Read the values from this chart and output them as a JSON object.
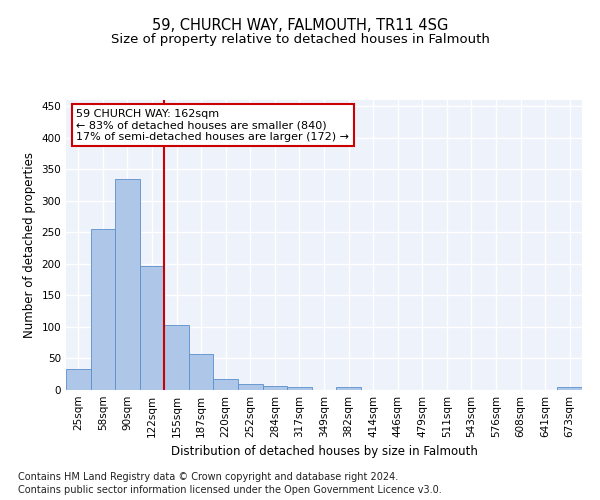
{
  "title": "59, CHURCH WAY, FALMOUTH, TR11 4SG",
  "subtitle": "Size of property relative to detached houses in Falmouth",
  "xlabel": "Distribution of detached houses by size in Falmouth",
  "ylabel": "Number of detached properties",
  "footnote1": "Contains HM Land Registry data © Crown copyright and database right 2024.",
  "footnote2": "Contains public sector information licensed under the Open Government Licence v3.0.",
  "bin_labels": [
    "25sqm",
    "58sqm",
    "90sqm",
    "122sqm",
    "155sqm",
    "187sqm",
    "220sqm",
    "252sqm",
    "284sqm",
    "317sqm",
    "349sqm",
    "382sqm",
    "414sqm",
    "446sqm",
    "479sqm",
    "511sqm",
    "543sqm",
    "576sqm",
    "608sqm",
    "641sqm",
    "673sqm"
  ],
  "bar_heights": [
    33,
    255,
    335,
    197,
    103,
    57,
    17,
    10,
    7,
    5,
    0,
    4,
    0,
    0,
    0,
    0,
    0,
    0,
    0,
    0,
    4
  ],
  "bar_color": "#aec6e8",
  "bar_edge_color": "#5a8fcc",
  "highlight_bin_index": 4,
  "highlight_color": "#cc0000",
  "annotation_text": "59 CHURCH WAY: 162sqm\n← 83% of detached houses are smaller (840)\n17% of semi-detached houses are larger (172) →",
  "annotation_box_color": "#ffffff",
  "annotation_border_color": "#cc0000",
  "ylim": [
    0,
    460
  ],
  "yticks": [
    0,
    50,
    100,
    150,
    200,
    250,
    300,
    350,
    400,
    450
  ],
  "background_color": "#eef2fb",
  "grid_color": "#ffffff",
  "title_fontsize": 10.5,
  "subtitle_fontsize": 9.5,
  "axis_label_fontsize": 8.5,
  "tick_fontsize": 7.5,
  "annotation_fontsize": 8,
  "footnote_fontsize": 7
}
